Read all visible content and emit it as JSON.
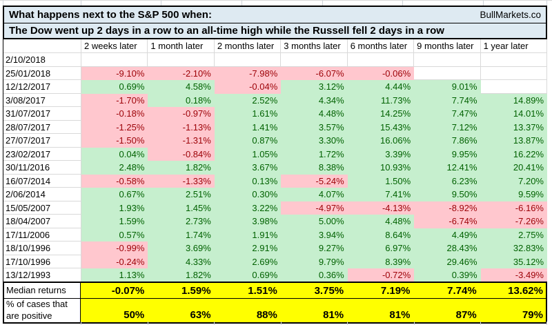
{
  "title": {
    "line1": "What happens next to the S&P 500 when:",
    "brand": "BullMarkets.co",
    "line2": "The Dow went up 2 days in a row to an all-time high while the Russell fell 2 days in a row"
  },
  "chart_data": {
    "type": "table",
    "title": "What happens next to the S&P 500 when: The Dow went up 2 days in a row to an all-time high while the Russell fell 2 days in a row",
    "columns": [
      "2 weeks later",
      "1 month later",
      "2 months later",
      "3 months later",
      "6 months later",
      "9 months later",
      "1 year later"
    ],
    "rows": [
      {
        "date": "2/10/2018",
        "values": [
          null,
          null,
          null,
          null,
          null,
          null,
          null
        ]
      },
      {
        "date": "25/01/2018",
        "values": [
          "-9.10%",
          "-2.10%",
          "-7.98%",
          "-6.07%",
          "-0.06%",
          null,
          null
        ]
      },
      {
        "date": "12/12/2017",
        "values": [
          "0.69%",
          "4.58%",
          "-0.04%",
          "3.12%",
          "4.44%",
          "9.01%",
          null
        ]
      },
      {
        "date": "3/08/2017",
        "values": [
          "-1.70%",
          "0.18%",
          "2.52%",
          "4.34%",
          "11.73%",
          "7.74%",
          "14.89%"
        ]
      },
      {
        "date": "31/07/2017",
        "values": [
          "-0.18%",
          "-0.97%",
          "1.61%",
          "4.48%",
          "14.25%",
          "7.47%",
          "14.01%"
        ]
      },
      {
        "date": "28/07/2017",
        "values": [
          "-1.25%",
          "-1.13%",
          "1.41%",
          "3.57%",
          "15.43%",
          "7.12%",
          "13.37%"
        ]
      },
      {
        "date": "27/07/2017",
        "values": [
          "-1.50%",
          "-1.31%",
          "0.87%",
          "3.30%",
          "16.06%",
          "7.86%",
          "13.87%"
        ]
      },
      {
        "date": "23/02/2017",
        "values": [
          "0.04%",
          "-0.84%",
          "1.05%",
          "1.72%",
          "3.39%",
          "9.95%",
          "16.22%"
        ]
      },
      {
        "date": "30/11/2016",
        "values": [
          "2.48%",
          "1.82%",
          "3.67%",
          "8.38%",
          "10.93%",
          "12.41%",
          "20.41%"
        ]
      },
      {
        "date": "16/07/2014",
        "values": [
          "-0.58%",
          "-1.33%",
          "0.13%",
          "-5.24%",
          "1.50%",
          "6.23%",
          "7.20%"
        ]
      },
      {
        "date": "2/06/2014",
        "values": [
          "0.67%",
          "2.51%",
          "0.30%",
          "4.07%",
          "7.41%",
          "9.50%",
          "9.59%"
        ]
      },
      {
        "date": "15/05/2007",
        "values": [
          "1.93%",
          "1.45%",
          "3.22%",
          "-4.97%",
          "-4.13%",
          "-8.92%",
          "-6.16%"
        ]
      },
      {
        "date": "18/04/2007",
        "values": [
          "1.59%",
          "2.73%",
          "3.98%",
          "5.00%",
          "4.48%",
          "-6.74%",
          "-7.26%"
        ]
      },
      {
        "date": "17/11/2006",
        "values": [
          "0.57%",
          "1.74%",
          "1.91%",
          "3.94%",
          "8.64%",
          "4.49%",
          "2.75%"
        ]
      },
      {
        "date": "18/10/1996",
        "values": [
          "-0.99%",
          "3.69%",
          "2.91%",
          "9.27%",
          "6.97%",
          "28.43%",
          "32.83%"
        ]
      },
      {
        "date": "17/10/1996",
        "values": [
          "-0.24%",
          "4.33%",
          "2.69%",
          "9.79%",
          "8.39%",
          "29.46%",
          "35.12%"
        ]
      },
      {
        "date": "13/12/1993",
        "values": [
          "1.13%",
          "1.82%",
          "0.69%",
          "0.36%",
          "-0.72%",
          "0.39%",
          "-3.49%"
        ]
      }
    ],
    "summary": [
      {
        "label_lines": [
          "Median returns"
        ],
        "values": [
          "-0.07%",
          "1.59%",
          "1.51%",
          "3.75%",
          "7.19%",
          "7.74%",
          "13.62%"
        ]
      },
      {
        "label_lines": [
          "% of cases that",
          "are positive"
        ],
        "values": [
          "50%",
          "63%",
          "88%",
          "81%",
          "81%",
          "87%",
          "79%"
        ]
      }
    ]
  },
  "colors": {
    "positive_bg": "#C6EFCE",
    "positive_text": "#006100",
    "negative_bg": "#FFC7CE",
    "negative_text": "#9C0006",
    "header_bg": "#DEEAF2",
    "summary_bg": "#FFFF00"
  }
}
